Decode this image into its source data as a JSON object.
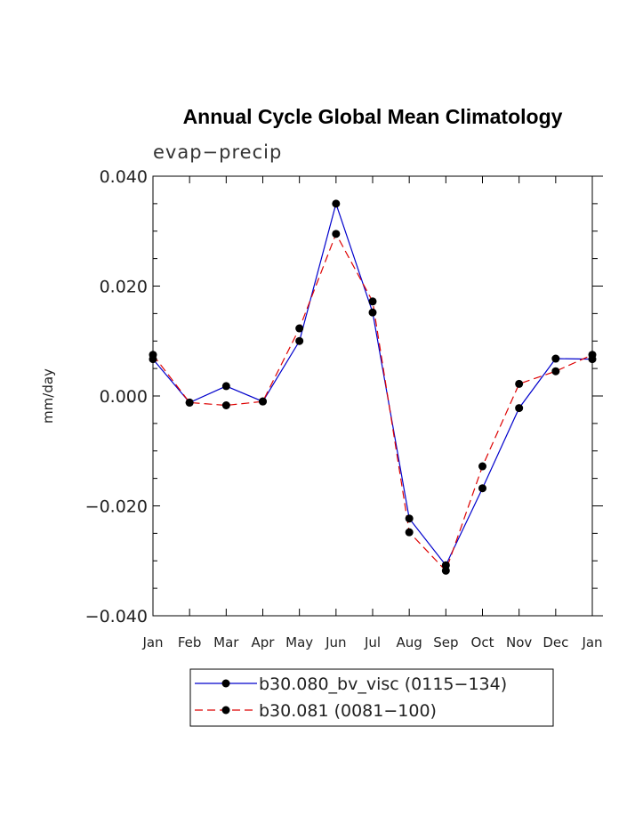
{
  "chart_data": {
    "type": "line",
    "title": "Annual Cycle Global Mean Climatology",
    "subtitle": "evap−precip",
    "ylabel": "mm/day",
    "xlabel": "",
    "ylim": [
      -0.04,
      0.04
    ],
    "yticks": [
      {
        "value": 0.04,
        "label": "0.040"
      },
      {
        "value": 0.02,
        "label": "0.020"
      },
      {
        "value": 0.0,
        "label": "0.000"
      },
      {
        "value": -0.02,
        "label": "−0.020"
      },
      {
        "value": -0.04,
        "label": "−0.040"
      }
    ],
    "yminor": [
      0.035,
      0.03,
      0.025,
      0.015,
      0.01,
      0.005,
      -0.005,
      -0.01,
      -0.015,
      -0.025,
      -0.03,
      -0.035
    ],
    "categories": [
      "Jan",
      "Feb",
      "Mar",
      "Apr",
      "May",
      "Jun",
      "Jul",
      "Aug",
      "Sep",
      "Oct",
      "Nov",
      "Dec",
      "Jan"
    ],
    "series": [
      {
        "name": "b30.080_bv_visc (0115−134)",
        "color": "#0000cc",
        "dash": "solid",
        "values": [
          0.0067,
          -0.0012,
          0.0018,
          -0.001,
          0.01,
          0.035,
          0.0152,
          -0.0223,
          -0.0308,
          -0.0168,
          -0.0022,
          0.0068,
          0.0067
        ]
      },
      {
        "name": "b30.081 (0081−100)",
        "color": "#dd0000",
        "dash": "dashed",
        "values": [
          0.0075,
          -0.0012,
          -0.0017,
          -0.001,
          0.0123,
          0.0295,
          0.0172,
          -0.0248,
          -0.0318,
          -0.0128,
          0.0022,
          0.0045,
          0.0075
        ]
      }
    ],
    "legend_position": "bottom-center",
    "grid": false
  }
}
